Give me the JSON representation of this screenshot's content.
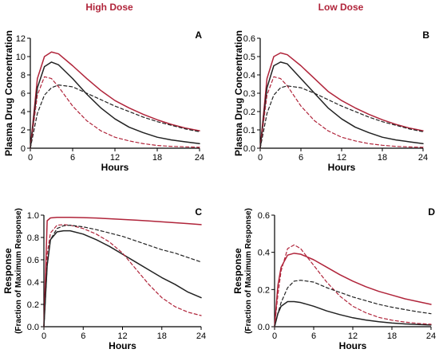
{
  "headers": {
    "left": "High Dose",
    "right": "Low Dose"
  },
  "colors": {
    "red": "#b0243a",
    "black": "#222222",
    "header": "#b0243a"
  },
  "chart_data": [
    {
      "panel": "A",
      "type": "line",
      "xlabel": "Hours",
      "ylabel": "Plasma Drug Concentration",
      "xlim": [
        0,
        24
      ],
      "ylim": [
        0,
        12
      ],
      "xticks": [
        "0",
        "6",
        "12",
        "18",
        "24"
      ],
      "yticks": [
        "0",
        "2",
        "4",
        "6",
        "8",
        "10",
        "12"
      ],
      "x": [
        0,
        1,
        2,
        3,
        4,
        6,
        8,
        10,
        12,
        14,
        16,
        18,
        20,
        22,
        24
      ],
      "series": [
        {
          "color": "red",
          "dash": false,
          "values": [
            0,
            7.6,
            10.0,
            10.5,
            10.3,
            9.0,
            7.6,
            6.3,
            5.2,
            4.4,
            3.7,
            3.1,
            2.6,
            2.2,
            1.9
          ]
        },
        {
          "color": "black",
          "dash": false,
          "values": [
            0,
            6.6,
            8.9,
            9.4,
            9.1,
            7.6,
            5.9,
            4.4,
            3.2,
            2.3,
            1.7,
            1.2,
            0.9,
            0.7,
            0.5
          ]
        },
        {
          "color": "red",
          "dash": true,
          "values": [
            0,
            5.8,
            7.8,
            7.6,
            6.7,
            4.6,
            3.0,
            1.9,
            1.2,
            0.8,
            0.5,
            0.3,
            0.2,
            0.15,
            0.1
          ]
        },
        {
          "color": "black",
          "dash": true,
          "values": [
            0,
            3.8,
            5.8,
            6.6,
            6.9,
            6.7,
            6.0,
            5.3,
            4.6,
            4.0,
            3.4,
            2.9,
            2.5,
            2.1,
            1.8
          ]
        }
      ]
    },
    {
      "panel": "B",
      "type": "line",
      "xlabel": "Hours",
      "ylabel": "Plasma Drug Concentration",
      "xlim": [
        0,
        24
      ],
      "ylim": [
        0,
        0.6
      ],
      "xticks": [
        "0",
        "6",
        "12",
        "18",
        "24"
      ],
      "yticks": [
        "0.0",
        "0.1",
        "0.2",
        "0.3",
        "0.4",
        "0.5",
        "0.6"
      ],
      "x": [
        0,
        1,
        2,
        3,
        4,
        6,
        8,
        10,
        12,
        14,
        16,
        18,
        20,
        22,
        24
      ],
      "series": [
        {
          "color": "red",
          "dash": false,
          "values": [
            0,
            0.38,
            0.5,
            0.52,
            0.51,
            0.45,
            0.38,
            0.31,
            0.26,
            0.22,
            0.185,
            0.155,
            0.13,
            0.11,
            0.095
          ]
        },
        {
          "color": "black",
          "dash": false,
          "values": [
            0,
            0.33,
            0.45,
            0.47,
            0.46,
            0.38,
            0.3,
            0.22,
            0.16,
            0.115,
            0.085,
            0.06,
            0.045,
            0.035,
            0.025
          ]
        },
        {
          "color": "red",
          "dash": true,
          "values": [
            0,
            0.29,
            0.39,
            0.38,
            0.34,
            0.23,
            0.15,
            0.095,
            0.06,
            0.04,
            0.025,
            0.016,
            0.01,
            0.007,
            0.005
          ]
        },
        {
          "color": "black",
          "dash": true,
          "values": [
            0,
            0.19,
            0.29,
            0.33,
            0.34,
            0.33,
            0.3,
            0.265,
            0.23,
            0.2,
            0.17,
            0.145,
            0.125,
            0.105,
            0.09
          ]
        }
      ]
    },
    {
      "panel": "C",
      "type": "line",
      "xlabel": "Hours",
      "ylabel": "Response",
      "ylabel2": "(Fraction of Maximum Response)",
      "xlim": [
        0,
        24
      ],
      "ylim": [
        0,
        1.0
      ],
      "xticks": [
        "0",
        "6",
        "12",
        "18",
        "24"
      ],
      "yticks": [
        "0.0",
        "0.2",
        "0.4",
        "0.6",
        "0.8",
        "1.0"
      ],
      "x": [
        0,
        0.5,
        1,
        2,
        3,
        4,
        6,
        8,
        10,
        12,
        14,
        16,
        18,
        20,
        22,
        24
      ],
      "series": [
        {
          "color": "red",
          "dash": false,
          "values": [
            0,
            0.95,
            0.975,
            0.98,
            0.98,
            0.98,
            0.978,
            0.974,
            0.968,
            0.962,
            0.955,
            0.948,
            0.94,
            0.932,
            0.924,
            0.915
          ]
        },
        {
          "color": "black",
          "dash": false,
          "values": [
            0,
            0.55,
            0.78,
            0.85,
            0.86,
            0.86,
            0.83,
            0.78,
            0.72,
            0.65,
            0.58,
            0.51,
            0.44,
            0.38,
            0.31,
            0.26
          ]
        },
        {
          "color": "red",
          "dash": true,
          "values": [
            0,
            0.65,
            0.84,
            0.91,
            0.915,
            0.91,
            0.88,
            0.83,
            0.76,
            0.66,
            0.52,
            0.38,
            0.26,
            0.18,
            0.13,
            0.1
          ]
        },
        {
          "color": "black",
          "dash": true,
          "values": [
            0,
            0.55,
            0.78,
            0.88,
            0.905,
            0.91,
            0.895,
            0.87,
            0.84,
            0.81,
            0.77,
            0.73,
            0.69,
            0.66,
            0.62,
            0.58
          ]
        }
      ]
    },
    {
      "panel": "D",
      "type": "line",
      "xlabel": "Hours",
      "ylabel": "Response",
      "ylabel2": "(Fraction of Maximum Response)",
      "xlim": [
        0,
        24
      ],
      "ylim": [
        0,
        0.6
      ],
      "xticks": [
        "0",
        "6",
        "12",
        "18",
        "24"
      ],
      "yticks": [
        "0.0",
        "0.2",
        "0.4",
        "0.6"
      ],
      "x": [
        0,
        0.5,
        1,
        2,
        3,
        4,
        6,
        8,
        10,
        12,
        14,
        16,
        18,
        20,
        22,
        24
      ],
      "series": [
        {
          "color": "red",
          "dash": false,
          "values": [
            0,
            0.22,
            0.32,
            0.385,
            0.395,
            0.39,
            0.36,
            0.32,
            0.28,
            0.245,
            0.215,
            0.19,
            0.17,
            0.15,
            0.135,
            0.12
          ]
        },
        {
          "color": "black",
          "dash": false,
          "values": [
            0,
            0.07,
            0.11,
            0.135,
            0.135,
            0.13,
            0.11,
            0.085,
            0.065,
            0.048,
            0.036,
            0.027,
            0.02,
            0.015,
            0.012,
            0.009
          ]
        },
        {
          "color": "red",
          "dash": true,
          "values": [
            0,
            0.17,
            0.3,
            0.42,
            0.44,
            0.42,
            0.33,
            0.24,
            0.165,
            0.11,
            0.075,
            0.05,
            0.035,
            0.025,
            0.018,
            0.013
          ]
        },
        {
          "color": "black",
          "dash": true,
          "values": [
            0,
            0.07,
            0.13,
            0.21,
            0.245,
            0.25,
            0.24,
            0.21,
            0.185,
            0.16,
            0.14,
            0.12,
            0.105,
            0.092,
            0.08,
            0.07
          ]
        }
      ]
    }
  ]
}
